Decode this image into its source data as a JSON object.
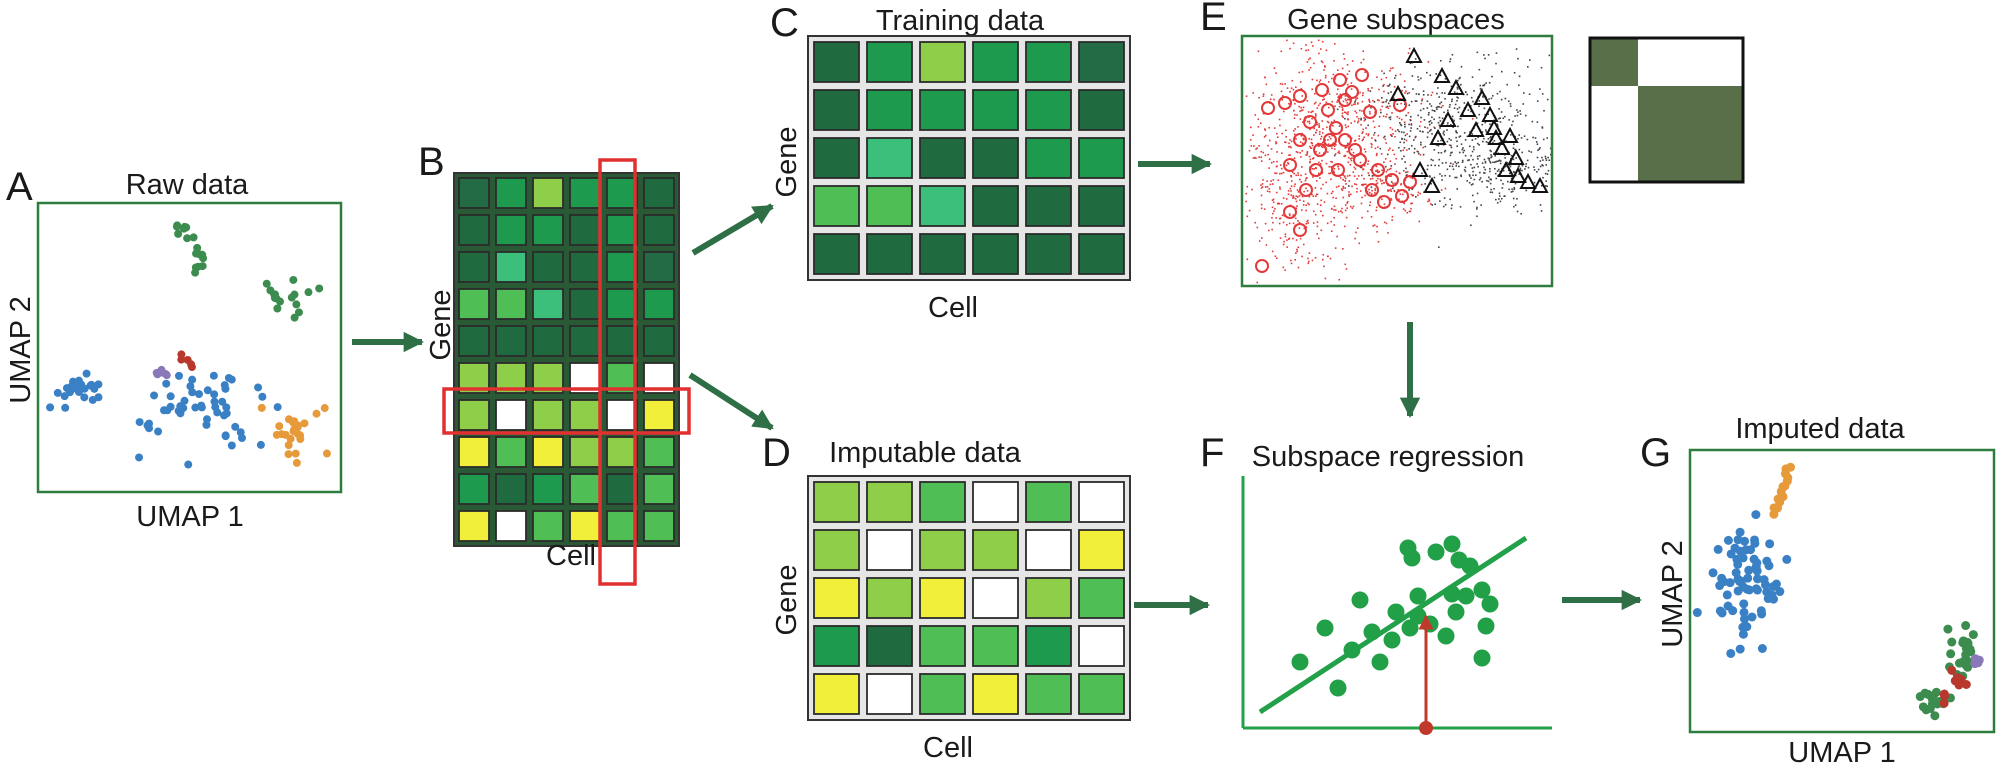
{
  "colors": {
    "frame": "#2e7d3e",
    "arrow": "#2f6f45",
    "highlight": "#e03030",
    "grid_frame": "#2a5a35",
    "regression_line": "#22a04a",
    "regression_point": "#21a048",
    "projection": "#c0392b",
    "cluster_blue": "#3a80c4",
    "cluster_green": "#3d8c4f",
    "cluster_orange": "#e69a3a",
    "cluster_purple": "#8a78b8",
    "cluster_red": "#b8382e",
    "subspace_red": "#e23a3a",
    "subspace_black": "#444444",
    "block_dark": "#586f4a",
    "cell_palette": {
      "1": "#1f6a3f",
      "2": "#226b44",
      "3": "#1e9a4e",
      "4": "#4fbf55",
      "5": "#8fce48",
      "6": "#f1ef3a",
      "7": "#3cbf7a",
      "0": "#ffffff"
    }
  },
  "panels": {
    "A": {
      "letter": "A",
      "title": "Raw data",
      "xlabel": "UMAP 1",
      "ylabel": "UMAP 2"
    },
    "B": {
      "letter": "B",
      "xlabel": "Cell",
      "ylabel": "Gene",
      "grid": [
        [
          2,
          3,
          5,
          3,
          3,
          1
        ],
        [
          1,
          3,
          3,
          1,
          3,
          1
        ],
        [
          1,
          7,
          1,
          1,
          3,
          2
        ],
        [
          4,
          4,
          7,
          1,
          3,
          3
        ],
        [
          1,
          1,
          1,
          1,
          1,
          1
        ],
        [
          5,
          5,
          5,
          0,
          4,
          0
        ],
        [
          5,
          0,
          5,
          5,
          0,
          6
        ],
        [
          6,
          4,
          6,
          5,
          5,
          4
        ],
        [
          3,
          1,
          3,
          4,
          1,
          4
        ],
        [
          6,
          0,
          4,
          6,
          4,
          4
        ]
      ]
    },
    "C": {
      "letter": "C",
      "title": "Training data",
      "xlabel": "Cell",
      "ylabel": "Gene",
      "grid": [
        [
          1,
          3,
          5,
          3,
          3,
          2
        ],
        [
          1,
          3,
          3,
          3,
          3,
          1
        ],
        [
          1,
          7,
          1,
          1,
          3,
          3
        ],
        [
          4,
          4,
          7,
          1,
          1,
          1
        ],
        [
          1,
          1,
          1,
          1,
          1,
          1
        ]
      ]
    },
    "D": {
      "letter": "D",
      "title": "Imputable data",
      "xlabel": "Cell",
      "ylabel": "Gene",
      "grid": [
        [
          5,
          5,
          4,
          0,
          4,
          0
        ],
        [
          5,
          0,
          5,
          5,
          0,
          6
        ],
        [
          6,
          5,
          6,
          0,
          5,
          4
        ],
        [
          3,
          1,
          4,
          4,
          3,
          0
        ],
        [
          6,
          0,
          4,
          6,
          4,
          4
        ]
      ]
    },
    "E": {
      "letter": "E",
      "title": "Gene subspaces"
    },
    "F": {
      "letter": "F",
      "title": "Subspace regression"
    },
    "G": {
      "letter": "G",
      "title": "Imputed data",
      "xlabel": "UMAP 1",
      "ylabel": "UMAP 2"
    }
  }
}
